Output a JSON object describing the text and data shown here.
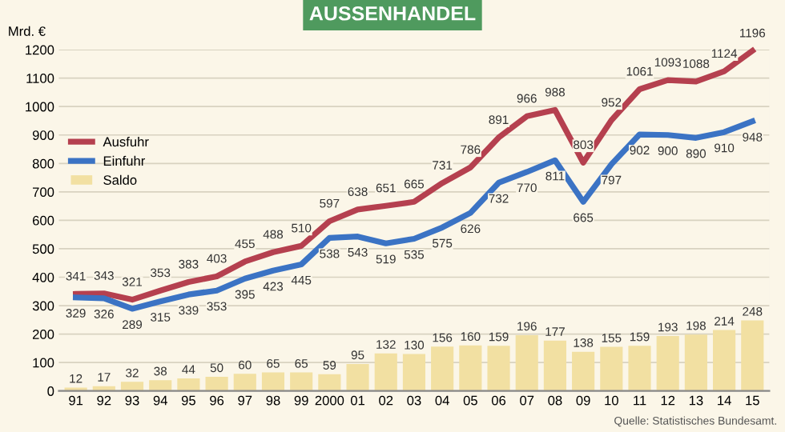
{
  "chart_data": {
    "type": "line",
    "title": "AUSSENHANDEL",
    "ylabel": "Mrd. €",
    "categories": [
      "91",
      "92",
      "93",
      "94",
      "95",
      "96",
      "97",
      "98",
      "99",
      "2000",
      "01",
      "02",
      "03",
      "04",
      "05",
      "06",
      "07",
      "08",
      "09",
      "10",
      "11",
      "12",
      "13",
      "14",
      "15"
    ],
    "series": [
      {
        "name": "Ausfuhr",
        "color": "#b5404f",
        "values": [
          341,
          343,
          321,
          353,
          383,
          403,
          455,
          488,
          510,
          597,
          638,
          651,
          665,
          731,
          786,
          891,
          966,
          988,
          803,
          952,
          1061,
          1093,
          1088,
          1124,
          1196
        ]
      },
      {
        "name": "Einfuhr",
        "color": "#3b73c4",
        "values": [
          329,
          326,
          289,
          315,
          339,
          353,
          395,
          423,
          445,
          538,
          543,
          519,
          535,
          575,
          626,
          732,
          770,
          811,
          665,
          797,
          902,
          900,
          890,
          910,
          948
        ]
      },
      {
        "name": "Saldo",
        "type": "bar",
        "color": "#f2e0a2",
        "values": [
          12,
          17,
          32,
          38,
          44,
          50,
          60,
          65,
          65,
          59,
          95,
          132,
          130,
          156,
          160,
          159,
          196,
          177,
          138,
          155,
          159,
          193,
          198,
          214,
          248
        ]
      }
    ],
    "ylim": [
      0,
      1200
    ],
    "yticks": [
      0,
      100,
      200,
      300,
      400,
      500,
      600,
      700,
      800,
      900,
      1000,
      1100,
      1200
    ],
    "grid": "y",
    "legend": "top left",
    "data_labels": true,
    "marker": "none",
    "annotations": [
      "Quelle: Statistisches Bundesamt."
    ]
  }
}
